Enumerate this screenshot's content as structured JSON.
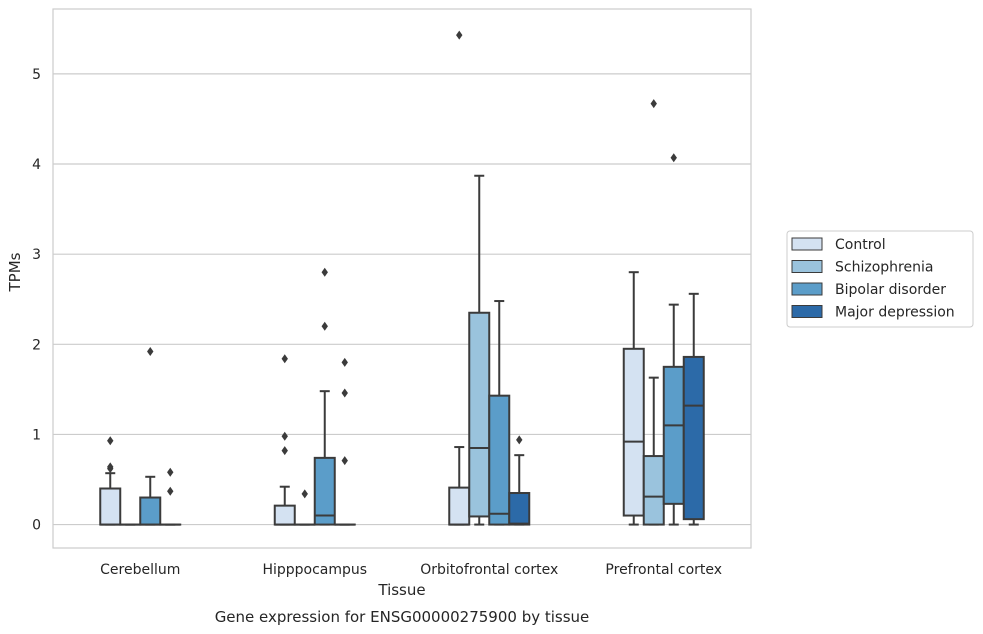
{
  "chart_data": {
    "type": "box",
    "title": "Gene expression for ENSG00000275900 by tissue",
    "xlabel": "Tissue",
    "ylabel": "TPMs",
    "ylim": [
      -0.26,
      5.72
    ],
    "yticks": [
      0,
      1,
      2,
      3,
      4,
      5
    ],
    "grid": true,
    "legend_position": "right",
    "categories": [
      "Cerebellum",
      "Hipppocampus",
      "Orbitofrontal cortex",
      "Prefrontal cortex"
    ],
    "series": [
      {
        "name": "Control",
        "color": "#d4e2f2",
        "boxes": [
          {
            "whislo": 0,
            "q1": 0,
            "med": 0,
            "q3": 0.4,
            "whishi": 0.57,
            "fliers": [
              0.62,
              0.64,
              0.93
            ]
          },
          {
            "whislo": 0,
            "q1": 0,
            "med": 0,
            "q3": 0.21,
            "whishi": 0.42,
            "fliers": [
              0.82,
              0.98,
              1.84
            ]
          },
          {
            "whislo": 0,
            "q1": 0,
            "med": 0,
            "q3": 0.41,
            "whishi": 0.86,
            "fliers": [
              5.43
            ]
          },
          {
            "whislo": 0,
            "q1": 0.1,
            "med": 0.92,
            "q3": 1.95,
            "whishi": 2.8,
            "fliers": []
          }
        ]
      },
      {
        "name": "Schizophrenia",
        "color": "#9ac3dd",
        "boxes": [
          {
            "whislo": 0,
            "q1": 0,
            "med": 0,
            "q3": 0,
            "whishi": 0,
            "fliers": []
          },
          {
            "whislo": 0,
            "q1": 0,
            "med": 0,
            "q3": 0,
            "whishi": 0,
            "fliers": [
              0.34
            ]
          },
          {
            "whislo": 0,
            "q1": 0.09,
            "med": 0.85,
            "q3": 2.35,
            "whishi": 3.87,
            "fliers": []
          },
          {
            "whislo": 0,
            "q1": 0,
            "med": 0.31,
            "q3": 0.76,
            "whishi": 1.63,
            "fliers": [
              4.67
            ]
          }
        ]
      },
      {
        "name": "Bipolar disorder",
        "color": "#5b9dc9",
        "boxes": [
          {
            "whislo": 0,
            "q1": 0,
            "med": 0,
            "q3": 0.3,
            "whishi": 0.53,
            "fliers": [
              1.92
            ]
          },
          {
            "whislo": 0,
            "q1": 0,
            "med": 0.1,
            "q3": 0.74,
            "whishi": 1.48,
            "fliers": [
              2.2,
              2.8
            ]
          },
          {
            "whislo": 0,
            "q1": 0,
            "med": 0.12,
            "q3": 1.43,
            "whishi": 2.48,
            "fliers": []
          },
          {
            "whislo": 0,
            "q1": 0.23,
            "med": 1.1,
            "q3": 1.75,
            "whishi": 2.44,
            "fliers": [
              4.07
            ]
          }
        ]
      },
      {
        "name": "Major depression",
        "color": "#2c6aa8",
        "boxes": [
          {
            "whislo": 0,
            "q1": 0,
            "med": 0,
            "q3": 0,
            "whishi": 0,
            "fliers": [
              0.37,
              0.58
            ]
          },
          {
            "whislo": 0,
            "q1": 0,
            "med": 0,
            "q3": 0,
            "whishi": 0,
            "fliers": [
              0.71,
              1.46,
              1.8
            ]
          },
          {
            "whislo": 0,
            "q1": 0,
            "med": 0.01,
            "q3": 0.35,
            "whishi": 0.77,
            "fliers": [
              0.94
            ]
          },
          {
            "whislo": 0,
            "q1": 0.06,
            "med": 1.32,
            "q3": 1.86,
            "whishi": 2.56,
            "fliers": []
          }
        ]
      }
    ]
  }
}
